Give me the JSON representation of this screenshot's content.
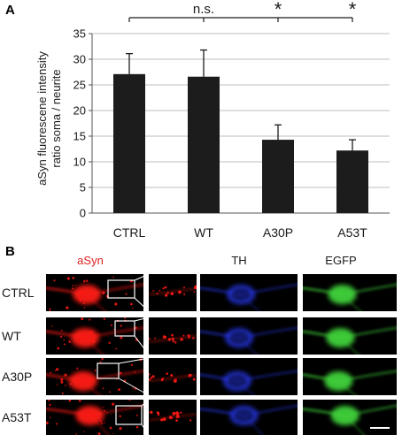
{
  "panel_a_label": "A",
  "panel_b_label": "B",
  "chart_data": {
    "type": "bar",
    "title": "",
    "ylabel_line1": "aSyn fluorescene intensity",
    "ylabel_line2": "ratio soma / neurite",
    "xlabel": "",
    "categories": [
      "CTRL",
      "WT",
      "A30P",
      "A53T"
    ],
    "values": [
      27.1,
      26.6,
      14.3,
      12.2
    ],
    "errors": [
      4.0,
      5.2,
      2.9,
      2.1
    ],
    "ylim": [
      0,
      35
    ],
    "yticks": [
      "0",
      "5",
      "10",
      "15",
      "20",
      "25",
      "30",
      "35"
    ],
    "grid": true,
    "bar_color": "#1c1c1c",
    "significance": [
      {
        "label": "n.s.",
        "compare": [
          "CTRL",
          "WT"
        ]
      },
      {
        "label": "*",
        "compare": [
          "CTRL",
          "A30P"
        ]
      },
      {
        "label": "*",
        "compare": [
          "CTRL",
          "A53T"
        ]
      }
    ]
  },
  "microscopy": {
    "columns": [
      {
        "label": "aSyn",
        "color": "#e0211f"
      },
      {
        "label": "TH",
        "color": "#1a1a1a"
      },
      {
        "label": "EGFP",
        "color": "#1a1a1a"
      }
    ],
    "rows": [
      "CTRL",
      "WT",
      "A30P",
      "A53T"
    ],
    "channel_colors": {
      "asyn": "#ff1a14",
      "th": "#2a3dff",
      "egfp": "#3fd13a"
    },
    "scale_bar": "scale-bar-icon"
  }
}
